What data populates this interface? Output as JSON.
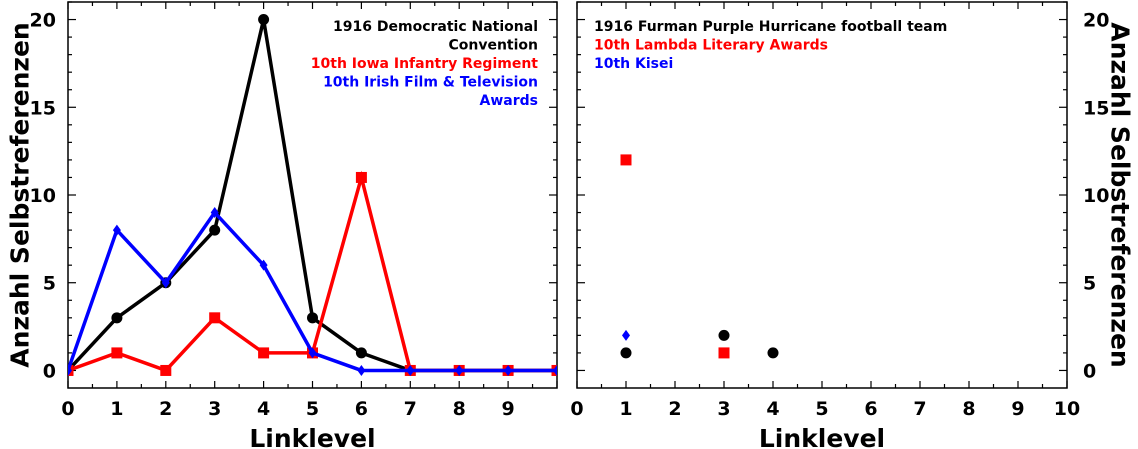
{
  "chart_data": [
    {
      "type": "line",
      "title": "",
      "xlabel": "Linklevel",
      "ylabel": "Anzahl Selbstreferenzen",
      "xlim": [
        0,
        10
      ],
      "ylim": [
        -1,
        21
      ],
      "xticks": [
        "0",
        "1",
        "2",
        "3",
        "4",
        "5",
        "6",
        "7",
        "8",
        "9"
      ],
      "yticks": [
        "0",
        "5",
        "10",
        "15",
        "20"
      ],
      "y_axis_side": "left",
      "legend_position": "top-right",
      "series": [
        {
          "name": "1916 Democratic National Convention",
          "color": "#000000",
          "marker": "circle",
          "x": [
            0,
            1,
            2,
            3,
            4,
            5,
            6,
            7,
            8,
            9,
            10
          ],
          "values": [
            0,
            3,
            5,
            8,
            20,
            3,
            1,
            0,
            0,
            0,
            0
          ]
        },
        {
          "name": "10th Iowa Infantry Regiment",
          "color": "#ff0000",
          "marker": "square",
          "x": [
            0,
            1,
            2,
            3,
            4,
            5,
            6,
            7,
            8,
            9,
            10
          ],
          "values": [
            0,
            1,
            0,
            3,
            1,
            1,
            11,
            0,
            0,
            0,
            0
          ]
        },
        {
          "name": "10th Irish Film & Television Awards",
          "color": "#0000ff",
          "marker": "diamond",
          "x": [
            0,
            1,
            2,
            3,
            4,
            5,
            6,
            7,
            8,
            9,
            10
          ],
          "values": [
            0,
            8,
            5,
            9,
            6,
            1,
            0,
            0,
            0,
            0,
            0
          ]
        }
      ],
      "legend_lines": [
        {
          "text": "1916 Democratic National",
          "color": "#000000"
        },
        {
          "text": "Convention",
          "color": "#000000"
        },
        {
          "text": "10th Iowa Infantry Regiment",
          "color": "#ff0000"
        },
        {
          "text": "10th Irish Film & Television",
          "color": "#0000ff"
        },
        {
          "text": "Awards",
          "color": "#0000ff"
        }
      ]
    },
    {
      "type": "scatter",
      "title": "",
      "xlabel": "Linklevel",
      "ylabel": "Anzahl Selbstreferenzen",
      "xlim": [
        0,
        10
      ],
      "ylim": [
        -1,
        21
      ],
      "xticks": [
        "0",
        "1",
        "2",
        "3",
        "4",
        "5",
        "6",
        "7",
        "8",
        "9",
        "10"
      ],
      "yticks": [
        "0",
        "5",
        "10",
        "15",
        "20"
      ],
      "y_axis_side": "right",
      "legend_position": "top-left",
      "series": [
        {
          "name": "1916 Furman Purple Hurricane football team",
          "color": "#000000",
          "marker": "circle",
          "x": [
            1,
            3,
            4
          ],
          "values": [
            1,
            2,
            1
          ]
        },
        {
          "name": "10th Lambda Literary Awards",
          "color": "#ff0000",
          "marker": "square",
          "x": [
            1,
            3
          ],
          "values": [
            12,
            1
          ]
        },
        {
          "name": "10th Kisei",
          "color": "#0000ff",
          "marker": "diamond",
          "x": [
            1
          ],
          "values": [
            2
          ]
        }
      ],
      "legend_lines": [
        {
          "text": "1916 Furman Purple Hurricane football team",
          "color": "#000000"
        },
        {
          "text": "10th Lambda Literary Awards",
          "color": "#ff0000"
        },
        {
          "text": "10th Kisei",
          "color": "#0000ff"
        }
      ]
    }
  ]
}
